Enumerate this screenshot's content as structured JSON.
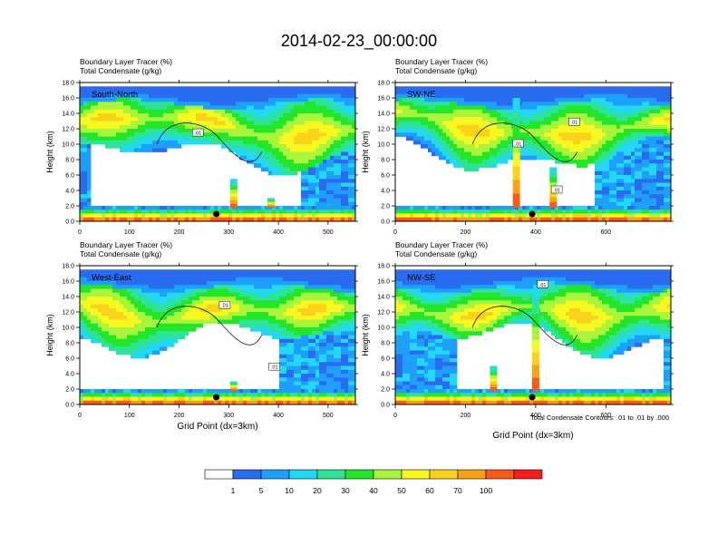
{
  "figure": {
    "title": "2014-02-23_00:00:00",
    "panel_header_line1": "Boundary Layer Tracer   (%)",
    "panel_header_line2": "Total Condensate   (g/kg)",
    "x_axis_label": "Grid Point (dx=3km)",
    "y_axis_label": "Height (km)",
    "contour_note": "Total Condensate Contours: .01 to .01 by .000"
  },
  "chart_data": [
    {
      "type": "heatmap",
      "panel": "South-North",
      "xlabel": "",
      "ylabel": "Height (km)",
      "xlim": [
        0,
        555
      ],
      "ylim": [
        0,
        18
      ],
      "xticks": [
        0,
        100,
        200,
        300,
        400,
        500
      ],
      "yticks": [
        "0.0",
        "2.0",
        "4.0",
        "6.0",
        "8.0",
        "10.0",
        "12.0",
        "14.0",
        "16.0",
        "18.0"
      ],
      "marker_x": 275,
      "contour_labels": [
        {
          "text": ".01",
          "x": 238,
          "y": 11.4
        }
      ],
      "peak_columns": [
        {
          "x": 310,
          "top": 5.5
        },
        {
          "x": 385,
          "top": 3.0
        }
      ]
    },
    {
      "type": "heatmap",
      "panel": "SW-NE",
      "xlabel": "",
      "ylabel": "Height (km)",
      "xlim": [
        0,
        785
      ],
      "ylim": [
        0,
        18
      ],
      "xticks": [
        0,
        200,
        400,
        600
      ],
      "yticks": [
        "0.0",
        "2.0",
        "4.0",
        "6.0",
        "8.0",
        "10.0",
        "12.0",
        "14.0",
        "16.0",
        "18.0"
      ],
      "marker_x": 390,
      "contour_labels": [
        {
          "text": ".01",
          "x": 510,
          "y": 12.8
        },
        {
          "text": ".01",
          "x": 350,
          "y": 10.0
        },
        {
          "text": ".01",
          "x": 460,
          "y": 4.0
        }
      ],
      "peak_columns": [
        {
          "x": 345,
          "top": 16.0
        },
        {
          "x": 450,
          "top": 7.0
        }
      ]
    },
    {
      "type": "heatmap",
      "panel": "West-East",
      "xlabel": "Grid Point (dx=3km)",
      "ylabel": "Height (km)",
      "xlim": [
        0,
        555
      ],
      "ylim": [
        0,
        18
      ],
      "xticks": [
        0,
        100,
        200,
        300,
        400,
        500
      ],
      "yticks": [
        "0.0",
        "2.0",
        "4.0",
        "6.0",
        "8.0",
        "10.0",
        "12.0",
        "14.0",
        "16.0",
        "18.0"
      ],
      "marker_x": 275,
      "contour_labels": [
        {
          "text": ".01",
          "x": 292,
          "y": 12.8
        },
        {
          "text": ".01",
          "x": 392,
          "y": 4.8
        }
      ],
      "peak_columns": [
        {
          "x": 310,
          "top": 3.0
        }
      ]
    },
    {
      "type": "heatmap",
      "panel": "NW-SE",
      "xlabel": "Grid Point (dx=3km)",
      "ylabel": "Height (km)",
      "xlim": [
        0,
        785
      ],
      "ylim": [
        0,
        18
      ],
      "xticks": [
        0,
        200,
        400,
        600
      ],
      "yticks": [
        "0.0",
        "2.0",
        "4.0",
        "6.0",
        "8.0",
        "10.0",
        "12.0",
        "14.0",
        "16.0",
        "18.0"
      ],
      "marker_x": 390,
      "contour_labels": [
        {
          "text": ".01",
          "x": 420,
          "y": 15.5
        }
      ],
      "peak_columns": [
        {
          "x": 400,
          "top": 15.0
        },
        {
          "x": 280,
          "top": 5.0
        }
      ]
    }
  ],
  "colorbar": {
    "labels": [
      "1",
      "5",
      "10",
      "20",
      "30",
      "40",
      "50",
      "60",
      "70",
      "100"
    ],
    "colors": [
      "#ffffff",
      "#2a6cf0",
      "#1f9ffc",
      "#22d8f2",
      "#2de39a",
      "#23e629",
      "#a8f53c",
      "#f8f821",
      "#fbd21a",
      "#fa9f18",
      "#f85a1b",
      "#f41e1e"
    ]
  }
}
